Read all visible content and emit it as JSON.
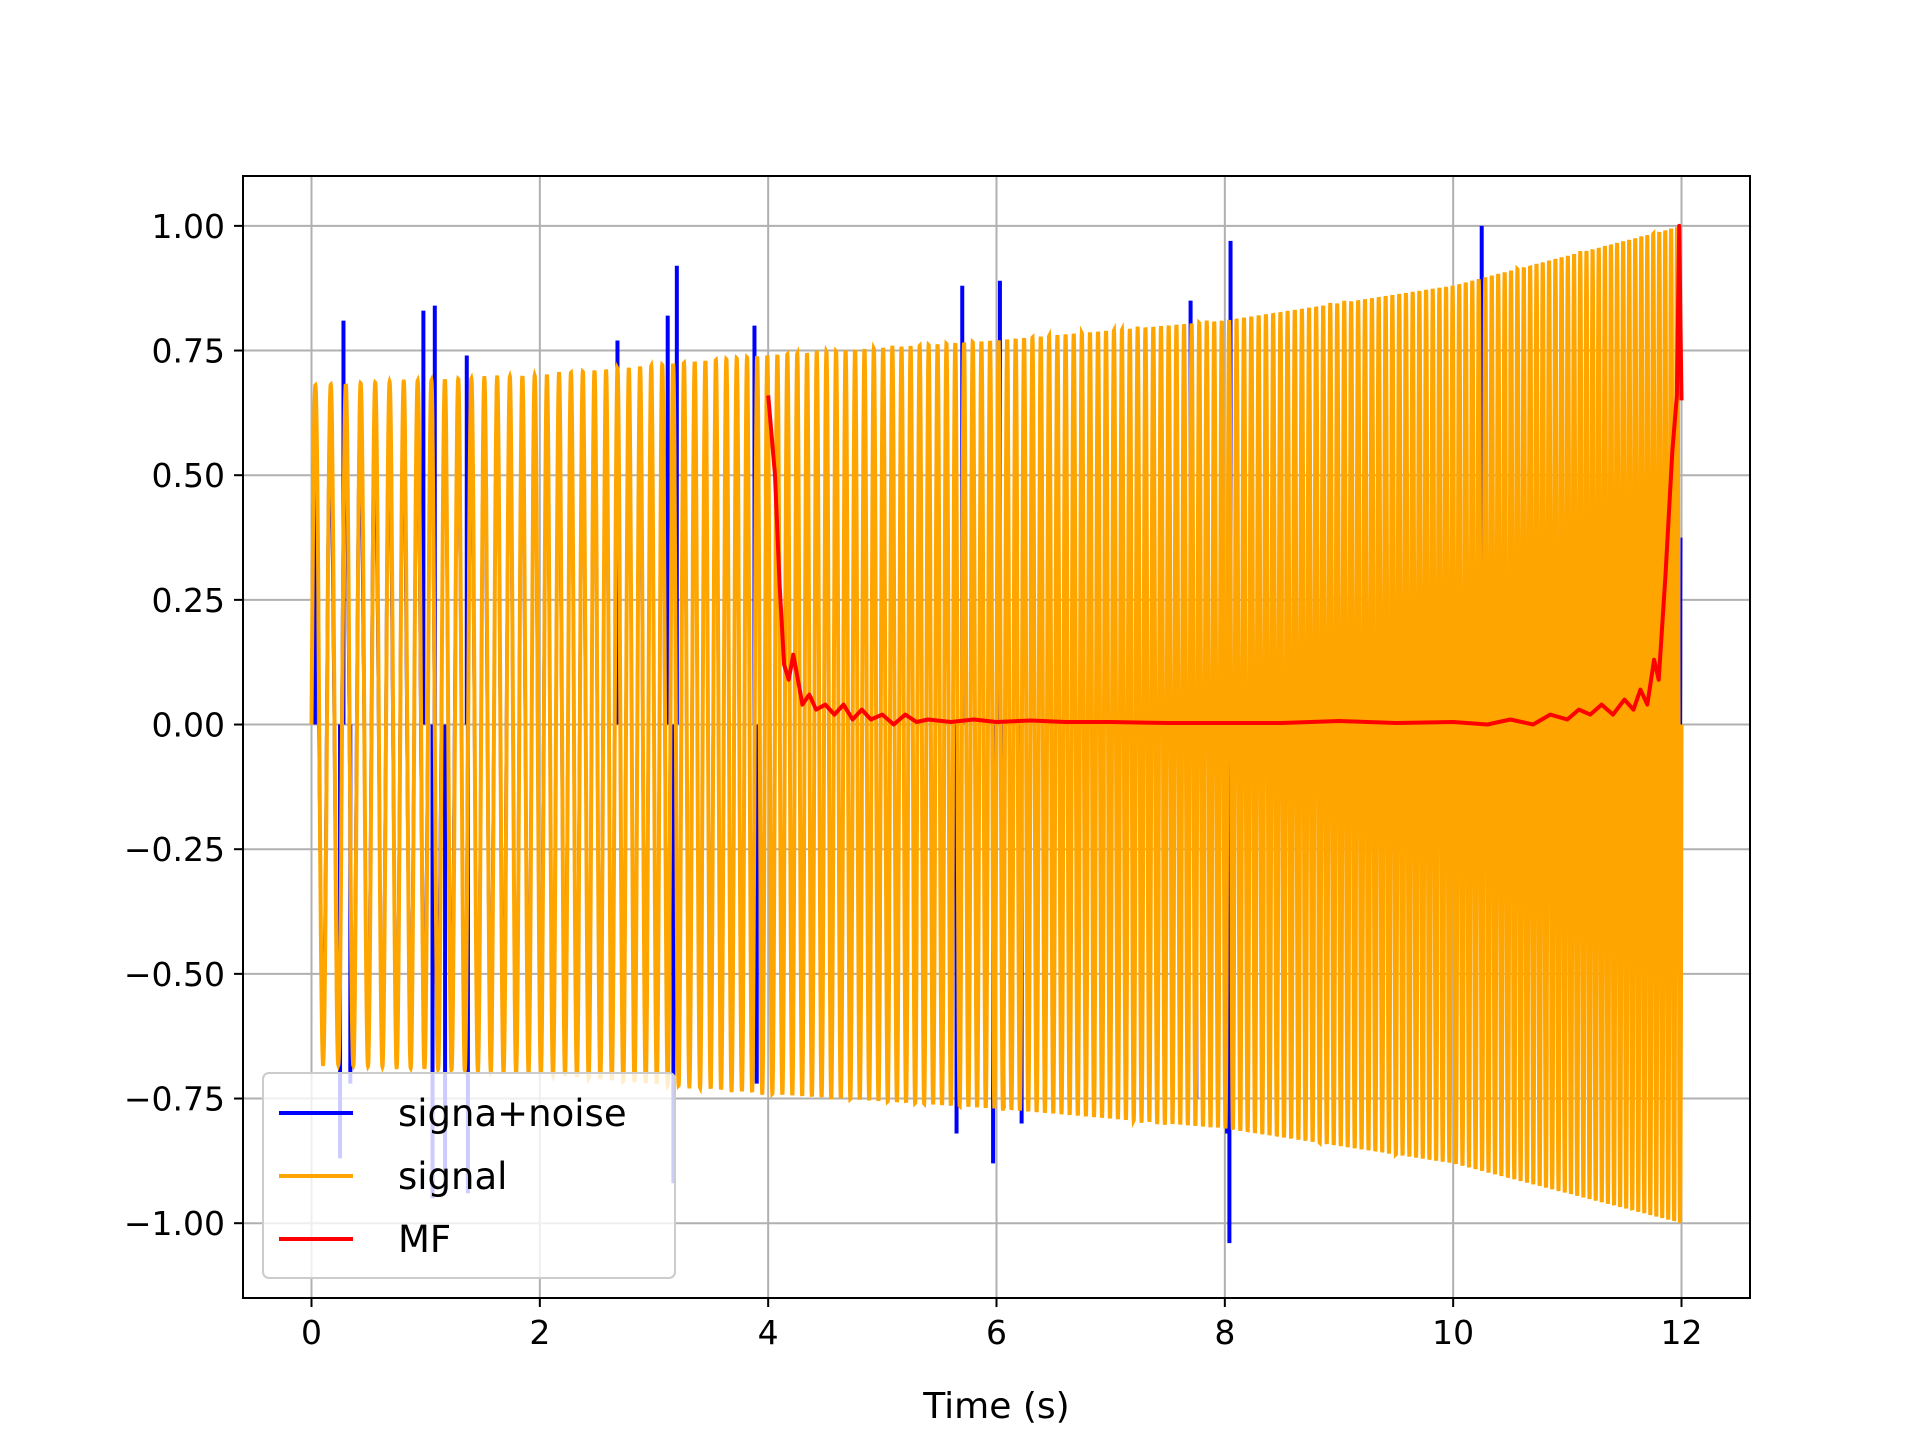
{
  "chart_data": {
    "type": "line",
    "title": "",
    "xlabel": "Time (s)",
    "ylabel": "",
    "xlim": [
      -0.6,
      12.6
    ],
    "ylim": [
      -1.15,
      1.1
    ],
    "xticks": [
      0,
      2,
      4,
      6,
      8,
      10,
      12
    ],
    "xtick_labels": [
      "0",
      "2",
      "4",
      "6",
      "8",
      "10",
      "12"
    ],
    "yticks": [
      1.0,
      0.75,
      0.5,
      0.25,
      0.0,
      -0.25,
      -0.5,
      -0.75,
      -1.0
    ],
    "ytick_labels": [
      "1.00",
      "0.75",
      "0.50",
      "0.25",
      "0.00",
      "−0.25",
      "−0.50",
      "−0.75",
      "−1.00"
    ],
    "grid": true,
    "legend": {
      "placement": "lower-left"
    },
    "series": [
      {
        "name": "signa+noise",
        "color": "#0000ff",
        "spikes": [
          [
            0.03,
            0.65
          ],
          [
            0.28,
            0.81
          ],
          [
            0.25,
            -0.87
          ],
          [
            0.34,
            -0.72
          ],
          [
            0.98,
            0.83
          ],
          [
            1.08,
            0.84
          ],
          [
            1.06,
            -0.95
          ],
          [
            1.17,
            -0.94
          ],
          [
            1.36,
            0.74
          ],
          [
            1.37,
            -0.94
          ],
          [
            2.68,
            0.77
          ],
          [
            3.12,
            0.82
          ],
          [
            3.2,
            0.92
          ],
          [
            3.17,
            -0.92
          ],
          [
            3.88,
            0.8
          ],
          [
            3.9,
            -0.72
          ],
          [
            5.65,
            -0.82
          ],
          [
            5.7,
            0.88
          ],
          [
            5.97,
            -0.88
          ],
          [
            6.03,
            0.89
          ],
          [
            6.06,
            -0.77
          ],
          [
            6.22,
            -0.8
          ],
          [
            7.7,
            0.85
          ],
          [
            7.75,
            -0.75
          ],
          [
            8.05,
            0.97
          ],
          [
            8.04,
            -1.04
          ],
          [
            8.02,
            -0.82
          ],
          [
            10.25,
            1.0
          ],
          [
            10.2,
            -0.8
          ],
          [
            11.97,
            0.2
          ],
          [
            11.99,
            -0.5
          ]
        ]
      },
      {
        "name": "signal",
        "color": "#ffa500",
        "envelope": {
          "t": [
            0,
            2,
            4,
            6,
            8,
            10,
            12
          ],
          "a": [
            0.68,
            0.7,
            0.74,
            0.77,
            0.81,
            0.88,
            1.0
          ]
        },
        "cycles": 160
      },
      {
        "name": "MF",
        "color": "#ff0000",
        "x": [
          4.0,
          4.06,
          4.1,
          4.14,
          4.18,
          4.22,
          4.26,
          4.3,
          4.36,
          4.42,
          4.5,
          4.58,
          4.66,
          4.74,
          4.82,
          4.9,
          5.0,
          5.1,
          5.2,
          5.3,
          5.4,
          5.6,
          5.8,
          6.0,
          6.3,
          6.6,
          7.0,
          7.5,
          8.0,
          8.5,
          9.0,
          9.5,
          10.0,
          10.3,
          10.5,
          10.7,
          10.85,
          11.0,
          11.1,
          11.2,
          11.3,
          11.4,
          11.5,
          11.58,
          11.64,
          11.7,
          11.76,
          11.8,
          11.86,
          11.92,
          11.96,
          11.98,
          12.0
        ],
        "y": [
          0.66,
          0.5,
          0.28,
          0.12,
          0.09,
          0.14,
          0.09,
          0.04,
          0.06,
          0.03,
          0.04,
          0.02,
          0.04,
          0.01,
          0.03,
          0.01,
          0.02,
          0.0,
          0.02,
          0.005,
          0.01,
          0.005,
          0.01,
          0.005,
          0.008,
          0.005,
          0.005,
          0.003,
          0.003,
          0.003,
          0.007,
          0.003,
          0.005,
          0.0,
          0.01,
          0.0,
          0.02,
          0.01,
          0.03,
          0.02,
          0.04,
          0.02,
          0.05,
          0.03,
          0.07,
          0.04,
          0.13,
          0.09,
          0.3,
          0.55,
          0.66,
          1.0,
          0.65
        ]
      }
    ]
  }
}
